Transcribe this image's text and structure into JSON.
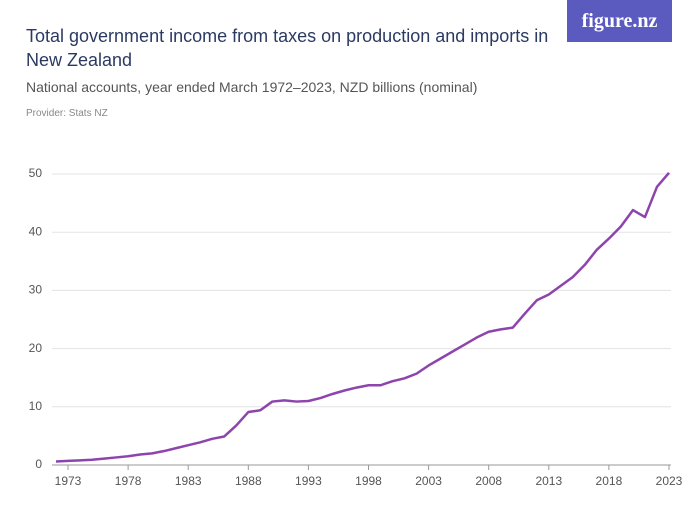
{
  "header": {
    "logo": "figure.nz"
  },
  "chart_data": {
    "type": "line",
    "title": "Total government income from taxes on production and imports in New Zealand",
    "subtitle": "National accounts, year ended March 1972–2023, NZD billions (nominal)",
    "provider": "Provider: Stats NZ",
    "x": [
      1972,
      1973,
      1974,
      1975,
      1976,
      1977,
      1978,
      1979,
      1980,
      1981,
      1982,
      1983,
      1984,
      1985,
      1986,
      1987,
      1988,
      1989,
      1990,
      1991,
      1992,
      1993,
      1994,
      1995,
      1996,
      1997,
      1998,
      1999,
      2000,
      2001,
      2002,
      2003,
      2004,
      2005,
      2006,
      2007,
      2008,
      2009,
      2010,
      2011,
      2012,
      2013,
      2014,
      2015,
      2016,
      2017,
      2018,
      2019,
      2020,
      2021,
      2022,
      2023
    ],
    "series": [
      {
        "name": "Taxes on production and imports",
        "color": "#8e44ad",
        "values": [
          0.6,
          0.7,
          0.8,
          0.9,
          1.1,
          1.3,
          1.5,
          1.8,
          2.0,
          2.4,
          2.9,
          3.4,
          3.9,
          4.5,
          4.9,
          6.8,
          9.1,
          9.4,
          10.9,
          11.1,
          10.9,
          11.0,
          11.5,
          12.2,
          12.8,
          13.3,
          13.7,
          13.7,
          14.4,
          14.9,
          15.7,
          17.1,
          18.3,
          19.5,
          20.7,
          21.9,
          22.9,
          23.3,
          23.6,
          26.0,
          28.3,
          29.3,
          30.8,
          32.3,
          34.4,
          37.0,
          38.9,
          41.0,
          43.8,
          42.6,
          47.8,
          50.2
        ]
      }
    ],
    "xlim": [
      1972,
      2023
    ],
    "xticks": [
      1973,
      1978,
      1983,
      1988,
      1993,
      1998,
      2003,
      2008,
      2013,
      2018,
      2023
    ],
    "ylim": [
      0,
      50
    ],
    "yticks": [
      0,
      10,
      20,
      30,
      40,
      50
    ],
    "grid": true
  }
}
